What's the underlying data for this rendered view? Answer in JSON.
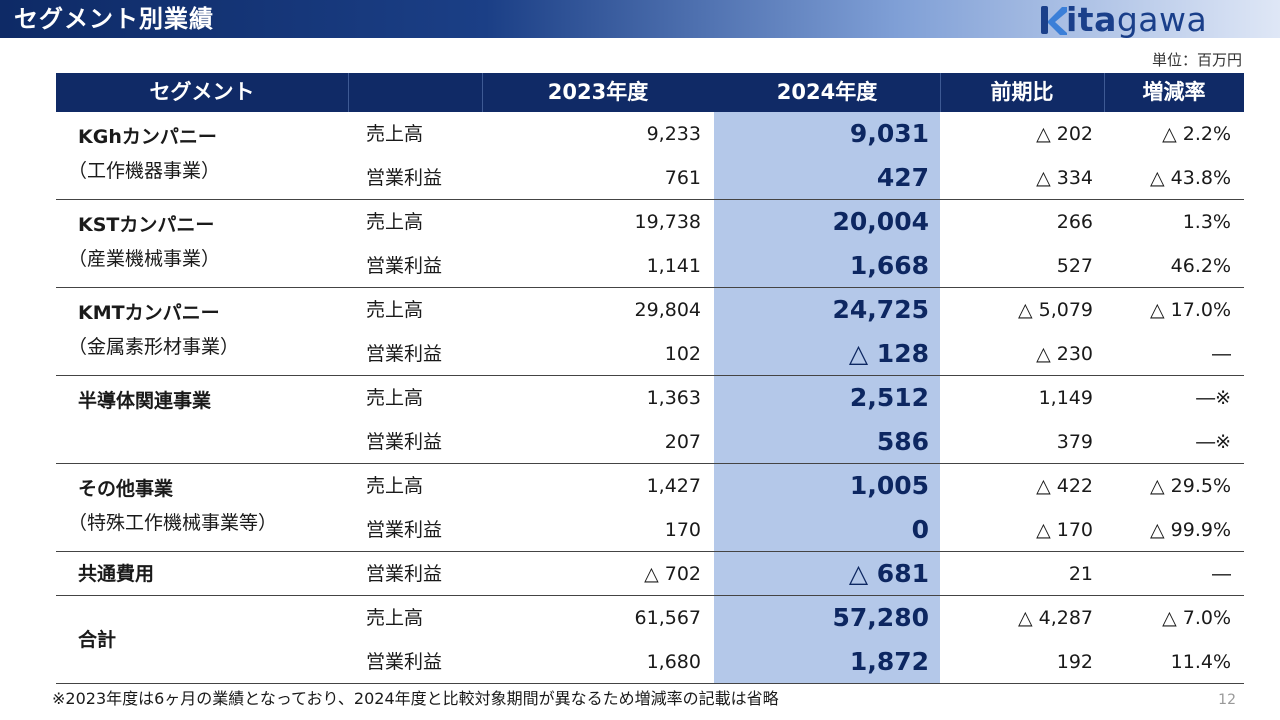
{
  "header": {
    "title": "セグメント別業績",
    "logo": {
      "prefix": "k",
      "bold": "ita",
      "rest": "gawa",
      "color": "#1a3f8a"
    }
  },
  "unit_note": "単位：百万円",
  "table": {
    "headers": {
      "segment": "セグメント",
      "fy2023": "2023年度",
      "fy2024": "2024年度",
      "yoy": "前期比",
      "rate": "増減率"
    },
    "groups": [
      {
        "name": "KGhカンパニー",
        "sub": "（工作機器事業）",
        "rows": [
          {
            "item": "売上高",
            "fy2023": "9,233",
            "fy2024": "9,031",
            "yoy": "△ 202",
            "rate": "△ 2.2%"
          },
          {
            "item": "営業利益",
            "fy2023": "761",
            "fy2024": "427",
            "yoy": "△ 334",
            "rate": "△ 43.8%"
          }
        ]
      },
      {
        "name": "KSTカンパニー",
        "sub": "（産業機械事業）",
        "rows": [
          {
            "item": "売上高",
            "fy2023": "19,738",
            "fy2024": "20,004",
            "yoy": "266",
            "rate": "1.3%"
          },
          {
            "item": "営業利益",
            "fy2023": "1,141",
            "fy2024": "1,668",
            "yoy": "527",
            "rate": "46.2%"
          }
        ]
      },
      {
        "name": "KMTカンパニー",
        "sub": "（金属素形材事業）",
        "rows": [
          {
            "item": "売上高",
            "fy2023": "29,804",
            "fy2024": "24,725",
            "yoy": "△ 5,079",
            "rate": "△ 17.0%"
          },
          {
            "item": "営業利益",
            "fy2023": "102",
            "fy2024": "△ 128",
            "yoy": "△ 230",
            "rate": "―"
          }
        ]
      },
      {
        "name": "半導体関連事業",
        "sub": "",
        "rows": [
          {
            "item": "売上高",
            "fy2023": "1,363",
            "fy2024": "2,512",
            "yoy": "1,149",
            "rate": "―※"
          },
          {
            "item": "営業利益",
            "fy2023": "207",
            "fy2024": "586",
            "yoy": "379",
            "rate": "―※"
          }
        ]
      },
      {
        "name": "その他事業",
        "sub": "（特殊工作機械事業等）",
        "rows": [
          {
            "item": "売上高",
            "fy2023": "1,427",
            "fy2024": "1,005",
            "yoy": "△ 422",
            "rate": "△ 29.5%"
          },
          {
            "item": "営業利益",
            "fy2023": "170",
            "fy2024": "0",
            "yoy": "△ 170",
            "rate": "△ 99.9%"
          }
        ]
      },
      {
        "name": "共通費用",
        "sub": "",
        "rows": [
          {
            "item": "営業利益",
            "fy2023": "△ 702",
            "fy2024": "△ 681",
            "yoy": "21",
            "rate": "―"
          }
        ]
      },
      {
        "name": "合計",
        "sub": "",
        "rows": [
          {
            "item": "売上高",
            "fy2023": "61,567",
            "fy2024": "57,280",
            "yoy": "△ 4,287",
            "rate": "△ 7.0%"
          },
          {
            "item": "営業利益",
            "fy2023": "1,680",
            "fy2024": "1,872",
            "yoy": "192",
            "rate": "11.4%"
          }
        ]
      }
    ]
  },
  "footnote": "※2023年度は6ヶ月の業績となっており、2024年度と比較対象期間が異なるため増減率の記載は省略",
  "page_number": "12",
  "colors": {
    "header_navy": "#102a66",
    "highlight": "#b4c8e9",
    "value_navy": "#0d2761"
  }
}
